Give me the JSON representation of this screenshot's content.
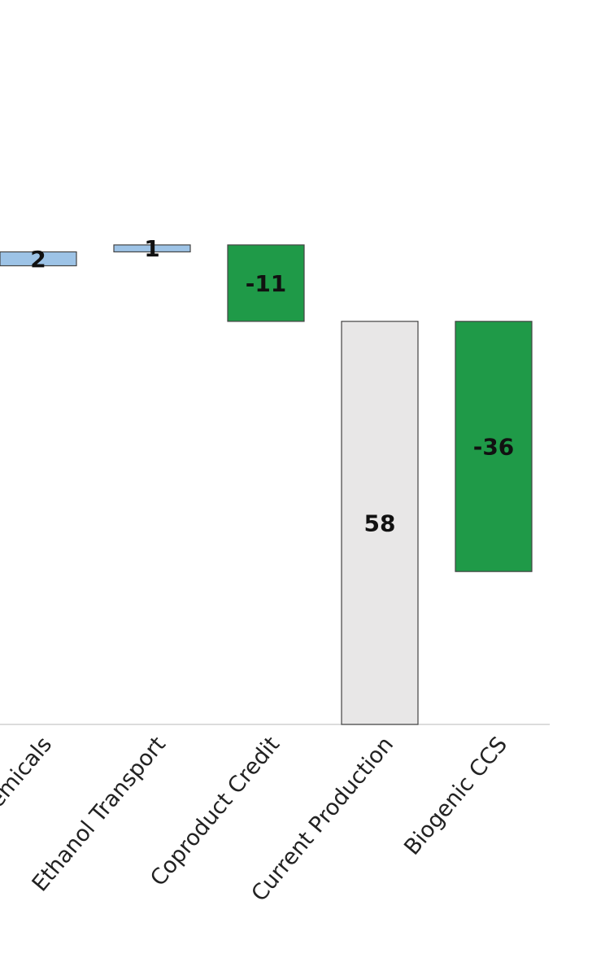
{
  "chart_data": {
    "type": "waterfall",
    "categories": [
      "emicals",
      "Ethanol Transport",
      "Coproduct Credit",
      "Current Production",
      "Biogenic CCS"
    ],
    "values": [
      2,
      1,
      -11,
      58,
      -36
    ],
    "measure": [
      "relative",
      "relative",
      "relative",
      "total",
      "relative"
    ],
    "colors": [
      "#9dc3e6",
      "#9dc3e6",
      "#1f9a48",
      "#e8e7e7",
      "#1f9a48"
    ],
    "ylim": [
      0,
      80
    ]
  }
}
